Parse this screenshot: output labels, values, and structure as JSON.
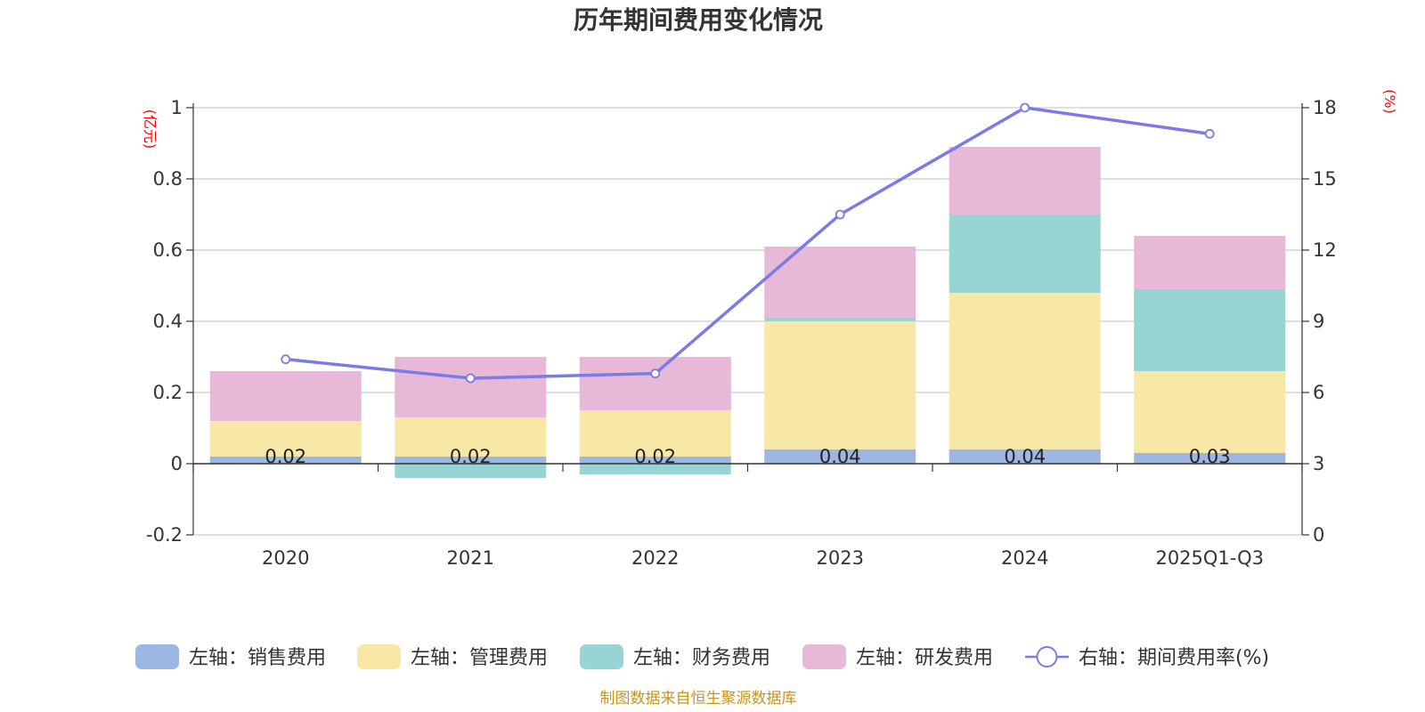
{
  "chart_data": {
    "type": "bar",
    "title": "历年期间费用变化情况",
    "categories": [
      "2020",
      "2021",
      "2022",
      "2023",
      "2024",
      "2025Q1-Q3"
    ],
    "left_axis": {
      "unit": "(亿元)",
      "min": -0.2,
      "max": 1,
      "ticks": [
        "-0.2",
        "0",
        "0.2",
        "0.4",
        "0.6",
        "0.8",
        "1"
      ]
    },
    "right_axis": {
      "unit": "(%)",
      "min": 0,
      "max": 18,
      "ticks": [
        "0",
        "3",
        "6",
        "9",
        "12",
        "15",
        "18"
      ]
    },
    "series": [
      {
        "name": "左轴：销售费用",
        "type": "bar",
        "axis": "left",
        "color": "#9db6e4",
        "values": [
          0.02,
          0.02,
          0.02,
          0.04,
          0.04,
          0.03
        ]
      },
      {
        "name": "左轴：管理费用",
        "type": "bar",
        "axis": "left",
        "color": "#f8e8a8",
        "values": [
          0.1,
          0.11,
          0.13,
          0.36,
          0.44,
          0.23
        ]
      },
      {
        "name": "左轴：财务费用",
        "type": "bar",
        "axis": "left",
        "color": "#98d4d4",
        "values": [
          0.0,
          -0.04,
          -0.03,
          0.01,
          0.22,
          0.23
        ]
      },
      {
        "name": "左轴：研发费用",
        "type": "bar",
        "axis": "left",
        "color": "#e8b8d8",
        "values": [
          0.14,
          0.17,
          0.15,
          0.2,
          0.19,
          0.15
        ]
      },
      {
        "name": "右轴：期间费用率(%)",
        "type": "line",
        "axis": "right",
        "color": "#7b7be8",
        "values": [
          7.4,
          6.6,
          6.8,
          13.5,
          18.0,
          16.9
        ]
      }
    ],
    "data_labels": [
      "0.02",
      "0.02",
      "0.02",
      "0.04",
      "0.04",
      "0.03"
    ],
    "legend_position": "bottom",
    "grid": true
  },
  "footer": "制图数据来自恒生聚源数据库"
}
